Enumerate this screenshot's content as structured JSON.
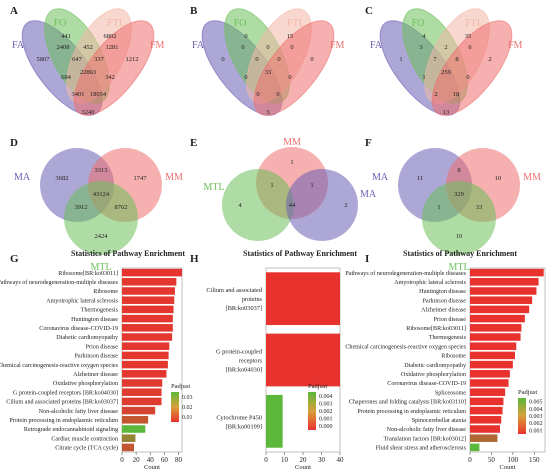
{
  "chart_data": [
    {
      "type": "venn",
      "panel": "A",
      "sets": [
        {
          "name": "FA",
          "color": "#6a5fb3"
        },
        {
          "name": "FO",
          "color": "#6cc05a"
        },
        {
          "name": "FTL",
          "color": "#f2b8a6"
        },
        {
          "name": "FM",
          "color": "#ef6f6f"
        }
      ],
      "region_values": [
        {
          "region": "FO only",
          "value": "441"
        },
        {
          "region": "FTL only",
          "value": "6802"
        },
        {
          "region": "FA only",
          "value": "5807"
        },
        {
          "region": "FM only",
          "value": "1212"
        },
        {
          "region": "FA∩FO",
          "value": "2408"
        },
        {
          "region": "FO∩FTL",
          "value": "452"
        },
        {
          "region": "FTL∩FM",
          "value": "1281"
        },
        {
          "region": "FA∩FO∩FTL",
          "value": "647"
        },
        {
          "region": "FO∩FTL∩FM",
          "value": "337"
        },
        {
          "region": "all",
          "value": "22863"
        },
        {
          "region": "FA∩FTL",
          "value": "684"
        },
        {
          "region": "FO∩FM",
          "value": "342"
        },
        {
          "region": "FA∩FTL∩FM",
          "value": "3401"
        },
        {
          "region": "FA∩FO∩FM",
          "value": "18054"
        },
        {
          "region": "FA∩FM",
          "value": "3240"
        }
      ]
    },
    {
      "type": "venn",
      "panel": "B",
      "sets": [
        {
          "name": "FA",
          "color": "#6a5fb3"
        },
        {
          "name": "FO",
          "color": "#6cc05a"
        },
        {
          "name": "FTL",
          "color": "#f2b8a6"
        },
        {
          "name": "FM",
          "color": "#ef6f6f"
        }
      ],
      "region_values": [
        {
          "region": "FO only",
          "value": "0"
        },
        {
          "region": "FTL only",
          "value": "15"
        },
        {
          "region": "FA only",
          "value": "0"
        },
        {
          "region": "FM only",
          "value": "0"
        },
        {
          "region": "FA∩FO",
          "value": "0"
        },
        {
          "region": "FO∩FTL",
          "value": "0"
        },
        {
          "region": "FTL∩FM",
          "value": "0"
        },
        {
          "region": "FA∩FO∩FTL",
          "value": "0"
        },
        {
          "region": "FO∩FTL∩FM",
          "value": "0"
        },
        {
          "region": "all",
          "value": "33"
        },
        {
          "region": "FA∩FTL",
          "value": "0"
        },
        {
          "region": "FO∩FM",
          "value": "0"
        },
        {
          "region": "FA∩FTL∩FM",
          "value": "0"
        },
        {
          "region": "FA∩FO∩FM",
          "value": "0"
        },
        {
          "region": "FA∩FM",
          "value": "3"
        }
      ]
    },
    {
      "type": "venn",
      "panel": "C",
      "sets": [
        {
          "name": "FA",
          "color": "#6a5fb3"
        },
        {
          "name": "FO",
          "color": "#6cc05a"
        },
        {
          "name": "FTL",
          "color": "#f2b8a6"
        },
        {
          "name": "FM",
          "color": "#ef6f6f"
        }
      ],
      "region_values": [
        {
          "region": "FO only",
          "value": "4"
        },
        {
          "region": "FTL only",
          "value": "35"
        },
        {
          "region": "FA only",
          "value": "1"
        },
        {
          "region": "FM only",
          "value": "2"
        },
        {
          "region": "FA∩FO",
          "value": "3"
        },
        {
          "region": "FO∩FTL",
          "value": "2"
        },
        {
          "region": "FTL∩FM",
          "value": "6"
        },
        {
          "region": "FA∩FO∩FTL",
          "value": "7"
        },
        {
          "region": "FO∩FTL∩FM",
          "value": "8"
        },
        {
          "region": "all",
          "value": "259"
        },
        {
          "region": "FA∩FTL",
          "value": "1"
        },
        {
          "region": "FO∩FM",
          "value": "0"
        },
        {
          "region": "FA∩FTL∩FM",
          "value": "2"
        },
        {
          "region": "FA∩FO∩FM",
          "value": "18"
        },
        {
          "region": "FA∩FM",
          "value": "13"
        }
      ]
    },
    {
      "type": "venn",
      "panel": "D",
      "sets": [
        {
          "name": "MA",
          "color": "#6a5fb3"
        },
        {
          "name": "MM",
          "color": "#ef6f6f"
        },
        {
          "name": "MTL",
          "color": "#6cc05a"
        }
      ],
      "region_values": [
        {
          "region": "MA only",
          "value": "3682"
        },
        {
          "region": "MA∩MM",
          "value": "3313"
        },
        {
          "region": "MM only",
          "value": "1747"
        },
        {
          "region": "MA∩MTL",
          "value": "3912"
        },
        {
          "region": "all",
          "value": "43124"
        },
        {
          "region": "MM∩MTL",
          "value": "8762"
        },
        {
          "region": "MTL only",
          "value": "2424"
        }
      ]
    },
    {
      "type": "venn",
      "panel": "E",
      "sets": [
        {
          "name": "MM",
          "color": "#ef6f6f"
        },
        {
          "name": "MTL",
          "color": "#6cc05a"
        },
        {
          "name": "MA",
          "color": "#6a5fb3"
        }
      ],
      "region_values": [
        {
          "region": "MM only",
          "value": "1"
        },
        {
          "region": "MTL only",
          "value": "4"
        },
        {
          "region": "MM∩MTL",
          "value": "1"
        },
        {
          "region": "all",
          "value": "44"
        },
        {
          "region": "MM∩MA",
          "value": "1"
        },
        {
          "region": "MA only",
          "value": "2"
        }
      ]
    },
    {
      "type": "venn",
      "panel": "F",
      "sets": [
        {
          "name": "MA",
          "color": "#6a5fb3"
        },
        {
          "name": "MM",
          "color": "#ef6f6f"
        },
        {
          "name": "MTL",
          "color": "#6cc05a"
        }
      ],
      "region_values": [
        {
          "region": "MA only",
          "value": "11"
        },
        {
          "region": "MA∩MM",
          "value": "8"
        },
        {
          "region": "MM only",
          "value": "10"
        },
        {
          "region": "MA∩MTL",
          "value": "1"
        },
        {
          "region": "all",
          "value": "329"
        },
        {
          "region": "MM∩MTL",
          "value": "33"
        },
        {
          "region": "MTL only",
          "value": "10"
        }
      ]
    },
    {
      "type": "bar",
      "orientation": "horizontal",
      "panel": "G",
      "title": "Statistics of Pathway Enrichment",
      "xlabel": "Count",
      "xlim": [
        0,
        85
      ],
      "xticks": [
        "0",
        "20",
        "40",
        "60",
        "80"
      ],
      "legend_title": "Padjust",
      "legend_ticks": [
        "0.03",
        "0.02",
        "0.01"
      ],
      "color_low": "#e8322e",
      "color_high": "#5cb83a",
      "categories": [
        "Ribosome[BR:ko03011]",
        "Pathways of neurodegeneration-multiple diseases",
        "Ribosome",
        "Amyotrophic lateral sclerosis",
        "Thermogenesis",
        "Huntington disease",
        "Coronavirus disease-COVID-19",
        "Diabetic cardiomyopathy",
        "Prion disease",
        "Parkinson disease",
        "Chemical carcinogenesis-reactive oxygen species",
        "Alzheimer disease",
        "Oxidative phosphorylation",
        "G protein-coupled receptors [BR:ko04030]",
        "Cilium and associated proteins [BR:ko03037]",
        "Non-alcoholic fatty liver disease",
        "Protein processing in endoplasmic reticulum",
        "Retrograde endocannabinoid signaling",
        "Cardiac muscle contraction",
        "Citrate cycle (TCA cycle)"
      ],
      "values": [
        85,
        77,
        75,
        74,
        73,
        72,
        72,
        71,
        67,
        66,
        65,
        63,
        57,
        56,
        56,
        47,
        37,
        33,
        19,
        17
      ],
      "padjust": [
        0.0,
        0.001,
        0.001,
        0.001,
        0.001,
        0.001,
        0.001,
        0.001,
        0.001,
        0.001,
        0.001,
        0.001,
        0.002,
        0.002,
        0.002,
        0.004,
        0.008,
        0.03,
        0.018,
        0.008
      ]
    },
    {
      "type": "bar",
      "orientation": "horizontal",
      "panel": "H",
      "title": "Statistics of Pathway Enrichment",
      "xlabel": "Count",
      "xlim": [
        0,
        40
      ],
      "xticks": [
        "0",
        "10",
        "20",
        "30",
        "40"
      ],
      "legend_title": "Padjust",
      "legend_ticks": [
        "0.004",
        "0.003",
        "0.002",
        "0.001",
        "0.000"
      ],
      "color_low": "#e8322e",
      "color_high": "#5cb83a",
      "categories": [
        "Cilium and associated proteins [BR:ko03037]",
        "G protein-coupled receptors [BR:ko04030]",
        "Cytochrome P450 [BR:ko00199]"
      ],
      "values": [
        40,
        40,
        9
      ],
      "padjust": [
        0.0,
        0.0,
        0.0045
      ]
    },
    {
      "type": "bar",
      "orientation": "horizontal",
      "panel": "I",
      "title": "Statistics of Pathway Enrichment",
      "xlabel": "Count",
      "xlim": [
        0,
        175
      ],
      "xticks": [
        "0",
        "50",
        "100",
        "150"
      ],
      "legend_title": "Padjust",
      "legend_ticks": [
        "0.005",
        "0.004",
        "0.003",
        "0.002",
        "0.001"
      ],
      "color_low": "#e8322e",
      "color_high": "#5cb83a",
      "categories": [
        "Pathways of neurodegeneration-multiple diseases",
        "Amyotrophic lateral sclerosis",
        "Huntington disease",
        "Parkinson disease",
        "Alzheimer disease",
        "Prion disease",
        "Ribosome[BR:ko03011]",
        "Thermogenesis",
        "Chemical carcinogenesis-reactive oxygen species",
        "Ribosome",
        "Diabetic cardiomyopathy",
        "Oxidative phosphorylation",
        "Coronavirus disease-COVID-19",
        "Spliceosome",
        "Chaperones and folding catalysts [BR:ko03110]",
        "Protein processing in endoplasmic reticulum",
        "Spinocerebellar ataxia",
        "Non-alcoholic fatty liver disease",
        "Translation factors [BR:ko03012]",
        "Fluid shear stress and atherosclerosis"
      ],
      "values": [
        172,
        160,
        155,
        145,
        138,
        128,
        120,
        118,
        108,
        105,
        100,
        93,
        90,
        82,
        78,
        76,
        73,
        70,
        64,
        22
      ],
      "padjust": [
        0.0,
        0.0,
        0.0,
        0.0,
        0.0,
        0.0,
        0.0,
        0.0,
        0.0,
        0.0,
        0.0,
        0.0,
        0.0,
        0.0,
        0.0,
        0.0,
        0.0,
        0.0,
        0.002,
        0.005
      ]
    }
  ]
}
